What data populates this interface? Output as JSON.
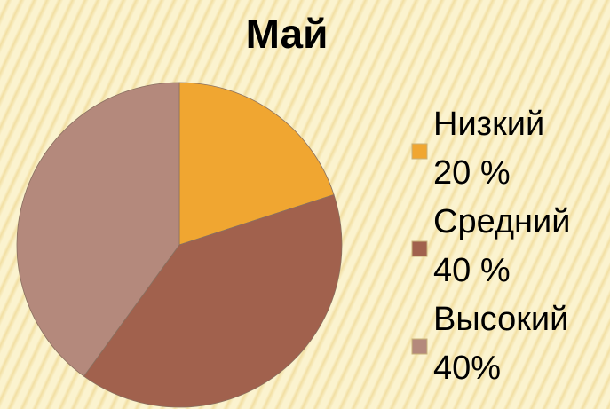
{
  "chart_data": {
    "type": "pie",
    "title": "Май",
    "categories": [
      "Низкий",
      "Средний",
      "Высокий"
    ],
    "values": [
      20,
      40,
      40
    ],
    "value_labels": [
      "20 %",
      "40 %",
      "40%"
    ],
    "colors": [
      "#f0a631",
      "#a1614d",
      "#b4897c"
    ],
    "legend": "right"
  }
}
